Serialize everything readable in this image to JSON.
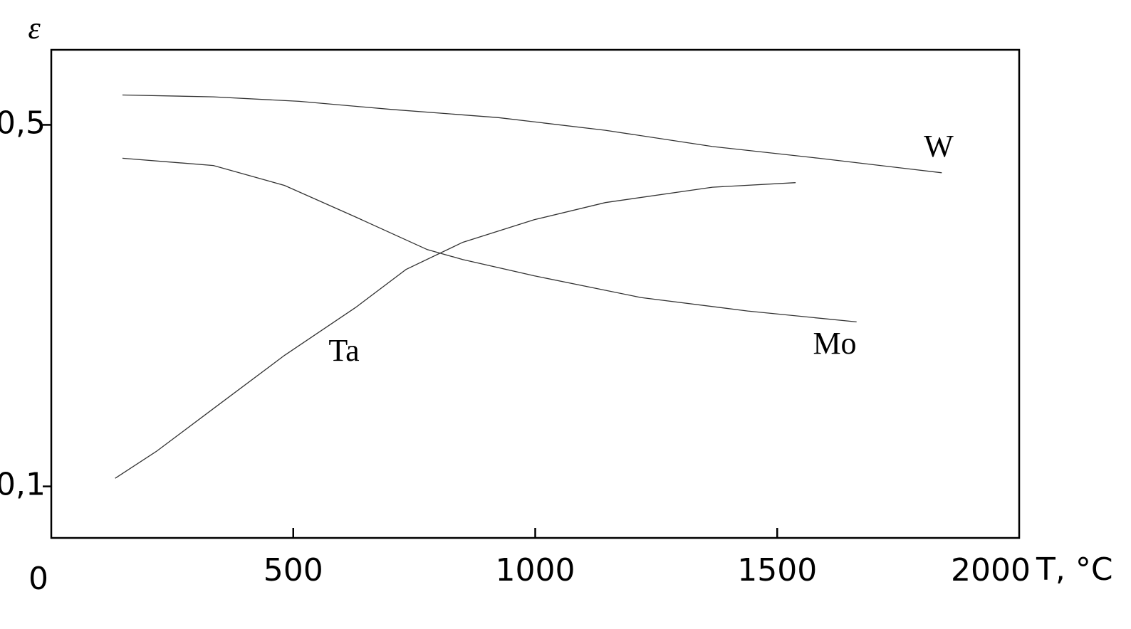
{
  "chart_data": {
    "type": "line",
    "y_label": "ε",
    "x_label": "T, °C",
    "xlim": [
      0,
      2000
    ],
    "xticks": [
      0,
      500,
      1000,
      1500,
      2000
    ],
    "ylim": [
      0.043,
      0.583
    ],
    "yticks": [
      {
        "value": 0.1,
        "label": "0,1"
      },
      {
        "value": 0.5,
        "label": "0,5"
      }
    ],
    "series": [
      {
        "name": "W",
        "color": "#333333",
        "x": [
          147,
          335,
          512,
          703,
          924,
          1145,
          1366,
          1586,
          1840
        ],
        "values": [
          0.533,
          0.531,
          0.526,
          0.517,
          0.508,
          0.494,
          0.476,
          0.463,
          0.447
        ]
      },
      {
        "name": "Mo",
        "color": "#333333",
        "x": [
          147,
          335,
          482,
          629,
          777,
          850,
          998,
          1218,
          1439,
          1664
        ],
        "values": [
          0.463,
          0.455,
          0.433,
          0.398,
          0.362,
          0.351,
          0.333,
          0.309,
          0.294,
          0.282
        ]
      },
      {
        "name": "Ta",
        "color": "#333333",
        "x": [
          132,
          218,
          335,
          482,
          629,
          733,
          850,
          998,
          1145,
          1366,
          1538
        ],
        "values": [
          0.109,
          0.139,
          0.186,
          0.245,
          0.298,
          0.34,
          0.37,
          0.395,
          0.414,
          0.431,
          0.436
        ]
      }
    ]
  }
}
